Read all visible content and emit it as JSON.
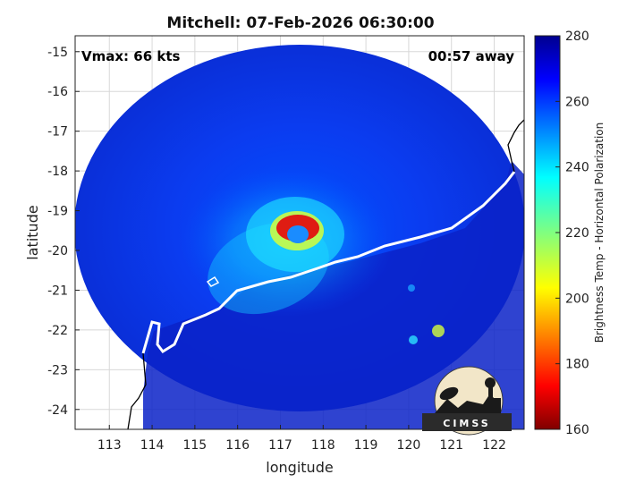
{
  "chart_data": {
    "type": "heatmap",
    "title": "Mitchell: 07-Feb-2026 06:30:00",
    "xlabel": "longitude",
    "ylabel": "latitude",
    "xlim": [
      112.2,
      122.7
    ],
    "ylim": [
      -24.5,
      -14.6
    ],
    "x_ticks": [
      113,
      114,
      115,
      116,
      117,
      118,
      119,
      120,
      121,
      122
    ],
    "y_ticks": [
      -15,
      -16,
      -17,
      -18,
      -19,
      -20,
      -21,
      -22,
      -23,
      -24
    ],
    "grid": true,
    "annotations": {
      "left": "Vmax: 66 kts",
      "right": "00:57 away"
    },
    "colorbar": {
      "label": "Brightness Temp - Horizontal Polarization",
      "range": [
        160,
        280
      ],
      "ticks": [
        280,
        260,
        240,
        220,
        200,
        180,
        160
      ],
      "colormap": "jet"
    },
    "eye_center": {
      "lon": 117.3,
      "lat": -19.6
    },
    "swath_center": {
      "lon": 117.5,
      "lat": -19.3
    }
  },
  "logo": {
    "text": "CIMSS"
  }
}
